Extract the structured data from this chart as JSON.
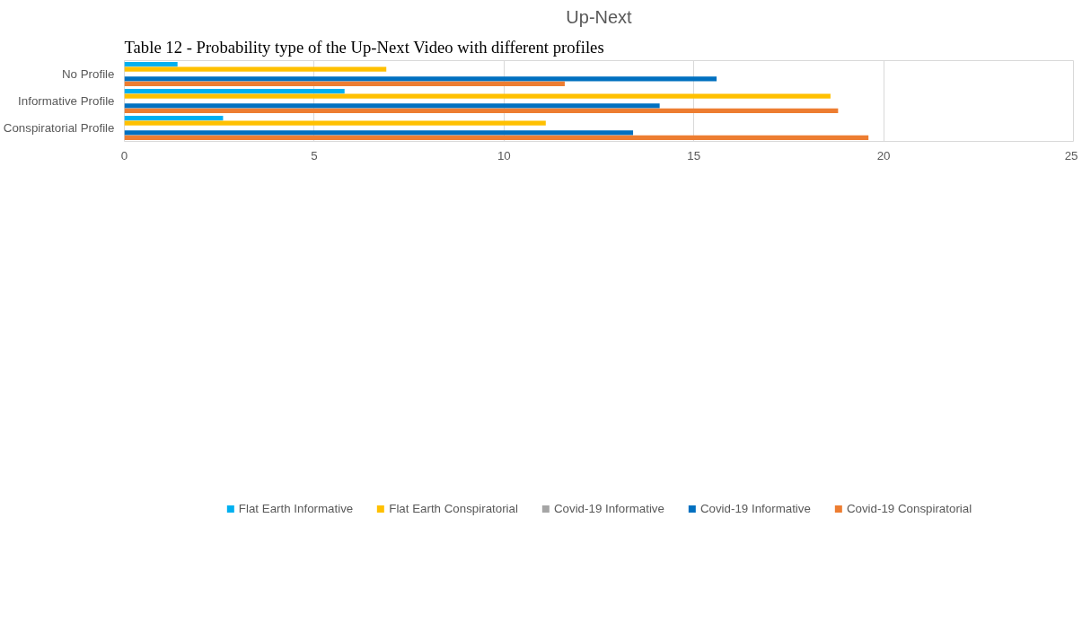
{
  "chart_data": {
    "type": "bar",
    "orientation": "horizontal",
    "title": "Up-Next",
    "annotations": [
      "Table 12 - Probability type of the Up-Next Video with different profiles"
    ],
    "categories": [
      "No Profile",
      "Informative Profile",
      "Conspiratorial Profile"
    ],
    "series": [
      {
        "name": "Flat Earth Informative",
        "color": "#00b0f0",
        "values": [
          1.4,
          5.8,
          2.6
        ]
      },
      {
        "name": "Flat Earth Conspiratorial",
        "color": "#ffc000",
        "values": [
          6.9,
          18.6,
          11.1
        ]
      },
      {
        "name": "Covid-19 Informative",
        "color": "#a5a5a5",
        "values": [
          null,
          null,
          null
        ]
      },
      {
        "name": "Covid-19 Informative",
        "color": "#0070c0",
        "values": [
          15.6,
          14.1,
          13.4
        ]
      },
      {
        "name": "Covid-19 Conspiratorial",
        "color": "#ed7d31",
        "values": [
          11.6,
          18.8,
          19.6
        ]
      }
    ],
    "xlim": [
      0,
      25
    ],
    "xticks": [
      0,
      5,
      10,
      15,
      20,
      25
    ],
    "grid": "x",
    "legend": "bottom"
  }
}
